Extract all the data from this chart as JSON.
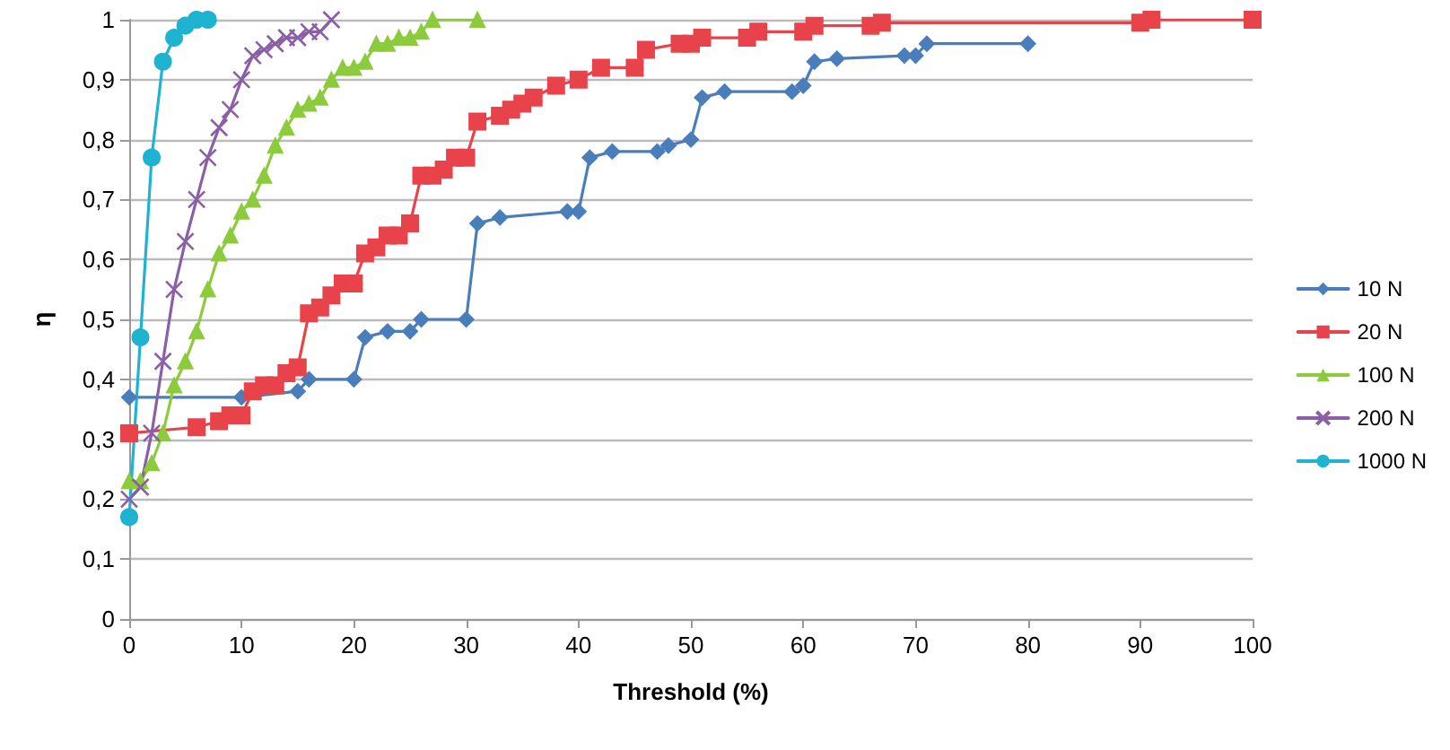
{
  "chart_data": {
    "type": "line",
    "xlabel": "Threshold (%)",
    "ylabel": "η",
    "xlim": [
      0,
      100
    ],
    "xticks": [
      0,
      10,
      20,
      30,
      40,
      50,
      60,
      70,
      80,
      90,
      100
    ],
    "ylim": [
      0,
      1
    ],
    "yticks": [
      {
        "value": 0,
        "label": "0"
      },
      {
        "value": 0.1,
        "label": "0,1"
      },
      {
        "value": 0.2,
        "label": "0,2"
      },
      {
        "value": 0.3,
        "label": "0,3"
      },
      {
        "value": 0.4,
        "label": "0,4"
      },
      {
        "value": 0.5,
        "label": "0,5"
      },
      {
        "value": 0.6,
        "label": "0,6"
      },
      {
        "value": 0.7,
        "label": "0,7"
      },
      {
        "value": 0.8,
        "label": "0,8"
      },
      {
        "value": 0.9,
        "label": "0,9"
      },
      {
        "value": 1,
        "label": "1"
      }
    ],
    "grid": "y",
    "legend": "right",
    "line_style": "solid",
    "series": [
      {
        "name": "10 N",
        "color": "#4a7ebb",
        "marker": "diamond",
        "x": [
          0,
          10,
          15,
          16,
          20,
          21,
          23,
          25,
          26,
          30,
          31,
          33,
          39,
          40,
          41,
          43,
          47,
          48,
          50,
          51,
          53,
          59,
          60,
          61,
          63,
          69,
          70,
          71,
          80
        ],
        "values": [
          0.37,
          0.37,
          0.38,
          0.4,
          0.4,
          0.47,
          0.48,
          0.48,
          0.5,
          0.5,
          0.66,
          0.67,
          0.68,
          0.68,
          0.77,
          0.78,
          0.78,
          0.79,
          0.8,
          0.87,
          0.88,
          0.88,
          0.89,
          0.93,
          0.935,
          0.94,
          0.94,
          0.96,
          0.96
        ]
      },
      {
        "name": "20 N",
        "color": "#e8434a",
        "marker": "square",
        "x": [
          0,
          6,
          8,
          9,
          10,
          11,
          12,
          13,
          14,
          15,
          16,
          17,
          18,
          19,
          20,
          21,
          22,
          23,
          24,
          25,
          26,
          27,
          28,
          29,
          30,
          31,
          33,
          34,
          35,
          36,
          38,
          40,
          42,
          45,
          46,
          49,
          50,
          51,
          55,
          56,
          60,
          61,
          66,
          67,
          90,
          91,
          100
        ],
        "values": [
          0.31,
          0.32,
          0.33,
          0.34,
          0.34,
          0.38,
          0.39,
          0.39,
          0.41,
          0.42,
          0.51,
          0.52,
          0.54,
          0.56,
          0.56,
          0.61,
          0.62,
          0.64,
          0.64,
          0.66,
          0.74,
          0.74,
          0.75,
          0.77,
          0.77,
          0.83,
          0.84,
          0.85,
          0.86,
          0.87,
          0.89,
          0.9,
          0.92,
          0.92,
          0.95,
          0.96,
          0.96,
          0.97,
          0.97,
          0.98,
          0.98,
          0.99,
          0.99,
          0.995,
          0.995,
          1,
          1
        ]
      },
      {
        "name": "100 N",
        "color": "#8ccb3c",
        "marker": "triangle",
        "x": [
          0,
          1,
          2,
          3,
          4,
          5,
          6,
          7,
          8,
          9,
          10,
          11,
          12,
          13,
          14,
          15,
          16,
          17,
          18,
          19,
          20,
          21,
          22,
          23,
          24,
          25,
          26,
          27,
          31
        ],
        "values": [
          0.23,
          0.23,
          0.26,
          0.31,
          0.39,
          0.43,
          0.48,
          0.55,
          0.61,
          0.64,
          0.68,
          0.7,
          0.74,
          0.79,
          0.82,
          0.85,
          0.86,
          0.87,
          0.9,
          0.92,
          0.92,
          0.93,
          0.96,
          0.96,
          0.97,
          0.97,
          0.98,
          1,
          1
        ]
      },
      {
        "name": "200 N",
        "color": "#8b5ea8",
        "marker": "cross",
        "x": [
          0,
          1,
          2,
          3,
          4,
          5,
          6,
          7,
          8,
          9,
          10,
          11,
          12,
          13,
          14,
          15,
          16,
          17,
          18
        ],
        "values": [
          0.2,
          0.22,
          0.31,
          0.43,
          0.55,
          0.63,
          0.7,
          0.77,
          0.82,
          0.85,
          0.9,
          0.94,
          0.95,
          0.96,
          0.97,
          0.97,
          0.98,
          0.98,
          1
        ]
      },
      {
        "name": "1000 N",
        "color": "#1eb3d1",
        "marker": "circle",
        "x": [
          0,
          1,
          2,
          3,
          4,
          5,
          6,
          7
        ],
        "values": [
          0.17,
          0.47,
          0.77,
          0.93,
          0.97,
          0.99,
          1,
          1
        ]
      }
    ]
  }
}
